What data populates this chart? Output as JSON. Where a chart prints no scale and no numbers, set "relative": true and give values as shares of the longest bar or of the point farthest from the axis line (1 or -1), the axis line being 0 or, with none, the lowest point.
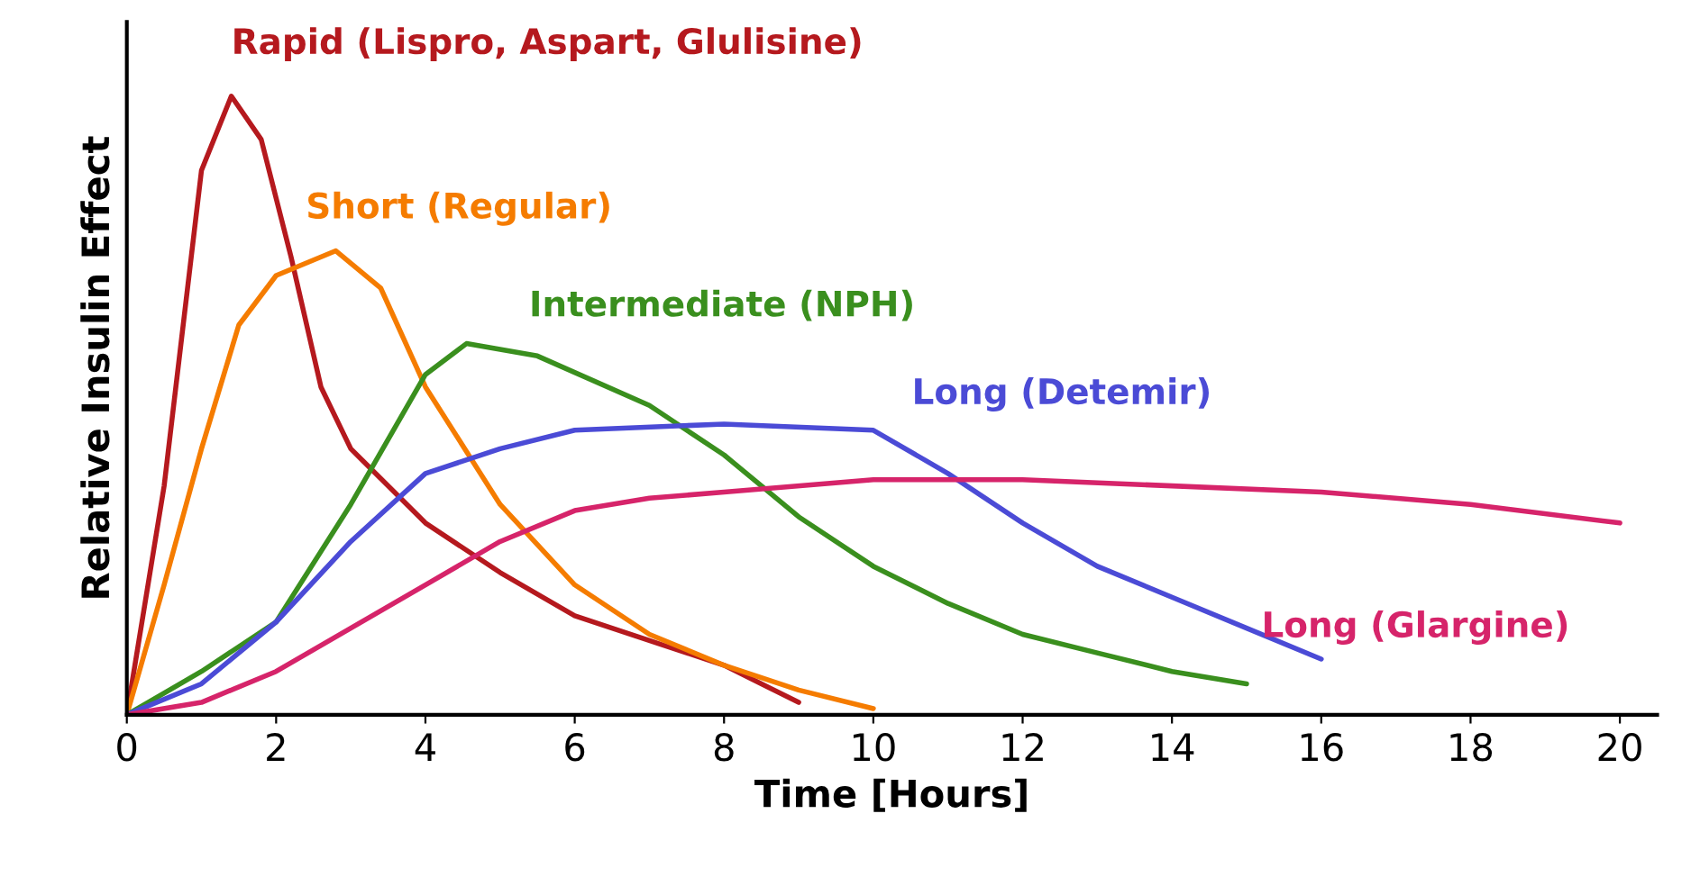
{
  "chart_data": {
    "type": "line",
    "xlabel": "Time [Hours]",
    "ylabel": "Relative Insulin Effect",
    "relative": true,
    "xlim": [
      0,
      20.5
    ],
    "xticks": [
      0,
      2,
      4,
      6,
      8,
      10,
      12,
      14,
      16,
      18,
      20
    ],
    "grid": false,
    "marker": "none",
    "line_style": "solid",
    "series": [
      {
        "name": "Rapid (Lispro, Aspart, Glulisine)",
        "color": "#b5191e",
        "x": [
          0,
          0.5,
          1,
          1.4,
          1.8,
          2.2,
          2.6,
          3,
          4,
          5,
          6,
          7,
          8,
          9
        ],
        "values": [
          0,
          0.37,
          0.88,
          1.0,
          0.93,
          0.74,
          0.53,
          0.43,
          0.31,
          0.23,
          0.16,
          0.12,
          0.08,
          0.02
        ]
      },
      {
        "name": "Short (Regular)",
        "color": "#f57c00",
        "x": [
          0,
          0.5,
          1,
          1.5,
          2,
          2.8,
          3.4,
          4,
          5,
          6,
          7,
          8,
          9,
          10
        ],
        "values": [
          0,
          0.21,
          0.43,
          0.63,
          0.71,
          0.75,
          0.69,
          0.53,
          0.34,
          0.21,
          0.13,
          0.08,
          0.04,
          0.01
        ]
      },
      {
        "name": "Intermediate (NPH)",
        "color": "#3a8f1e",
        "x": [
          0,
          1,
          2,
          3,
          4,
          4.55,
          5.5,
          7,
          8,
          9,
          10,
          11,
          12,
          13,
          14,
          15
        ],
        "values": [
          0,
          0.07,
          0.15,
          0.34,
          0.55,
          0.6,
          0.58,
          0.5,
          0.42,
          0.32,
          0.24,
          0.18,
          0.13,
          0.1,
          0.07,
          0.05
        ]
      },
      {
        "name": "Long (Detemir)",
        "color": "#4b4bd6",
        "x": [
          0,
          1,
          2,
          3,
          4,
          5,
          6,
          8,
          10,
          11,
          12,
          13,
          14,
          15,
          16
        ],
        "values": [
          0,
          0.05,
          0.15,
          0.28,
          0.39,
          0.43,
          0.46,
          0.47,
          0.46,
          0.39,
          0.31,
          0.24,
          0.19,
          0.14,
          0.09
        ]
      },
      {
        "name": "Long (Glargine)",
        "color": "#d6246a",
        "x": [
          0,
          1,
          2,
          3,
          4,
          5,
          6,
          7,
          8,
          10,
          12,
          14,
          16,
          18,
          20
        ],
        "values": [
          0,
          0.02,
          0.07,
          0.14,
          0.21,
          0.28,
          0.33,
          0.35,
          0.36,
          0.38,
          0.38,
          0.37,
          0.36,
          0.34,
          0.31
        ]
      }
    ]
  }
}
